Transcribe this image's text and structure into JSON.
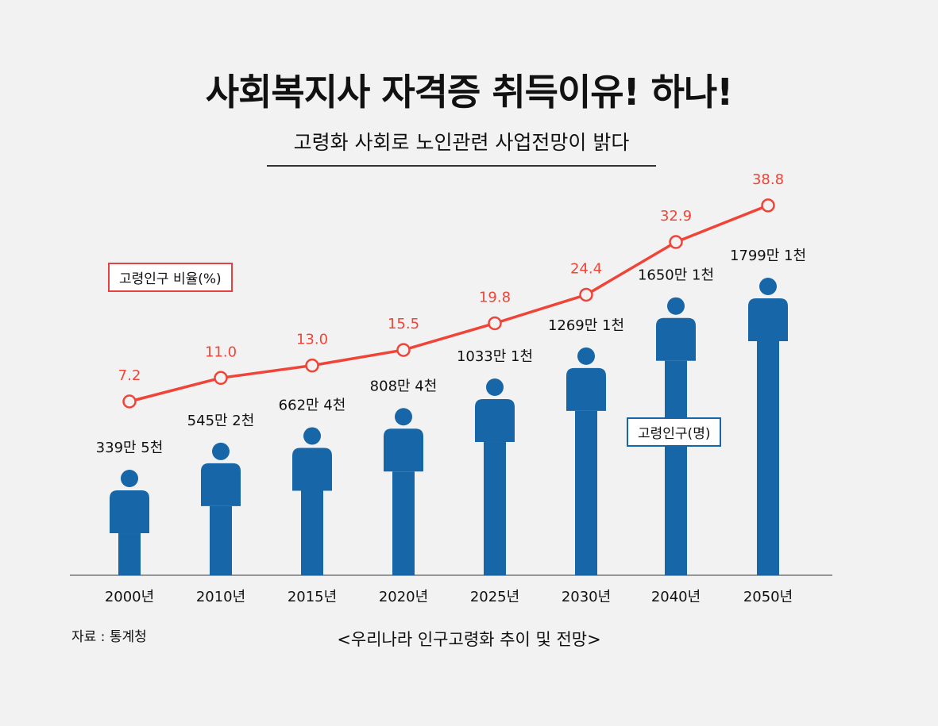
{
  "header": {
    "title": "사회복지사 자격증 취득이유! 하나!",
    "subtitle": "고령화 사회로 노인관련 사업전망이 밝다"
  },
  "chart_data": {
    "type": "bar+line",
    "categories": [
      "2000년",
      "2010년",
      "2015년",
      "2020년",
      "2025년",
      "2030년",
      "2040년",
      "2050년"
    ],
    "series": [
      {
        "name": "고령인구(명)",
        "type": "pictogram",
        "values": [
          3395000,
          5452000,
          6624000,
          8084000,
          10331000,
          12691000,
          16501000,
          17991000
        ],
        "labels": [
          "339만 5천",
          "545만 2천",
          "662만 4천",
          "808만 4천",
          "1033만 1천",
          "1269만 1천",
          "1650만 1천",
          "1799만 1천"
        ],
        "color": "#1767a8"
      },
      {
        "name": "고령인구 비율(%)",
        "type": "line",
        "values": [
          7.2,
          11.0,
          13.0,
          15.5,
          19.8,
          24.4,
          32.9,
          38.8
        ],
        "labels": [
          "7.2",
          "11.0",
          "13.0",
          "15.5",
          "19.8",
          "24.4",
          "32.9",
          "38.8"
        ],
        "color": "#f04438"
      }
    ],
    "legend": {
      "rate": "고령인구 비율(%)",
      "population": "고령인구(명)"
    },
    "grid": false
  },
  "footer": {
    "source": "자료 : 통계청",
    "caption": "<우리나라 인구고령화 추이 및 전망>"
  }
}
